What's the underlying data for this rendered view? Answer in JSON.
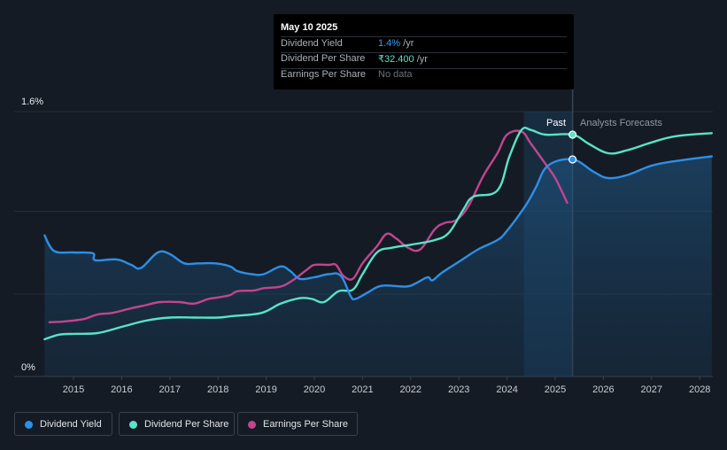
{
  "tooltip": {
    "date": "May 10 2025",
    "rows": [
      {
        "label": "Dividend Yield",
        "value": "1.4%",
        "unit": " /yr",
        "color": "#3b9ff0"
      },
      {
        "label": "Dividend Per Share",
        "value": "₹32.400",
        "unit": " /yr",
        "color": "#59e3c8"
      },
      {
        "label": "Earnings Per Share",
        "value": "No data",
        "unit": "",
        "color": "#6b727b"
      }
    ]
  },
  "labels": {
    "past": "Past",
    "forecast": "Analysts Forecasts"
  },
  "legend": [
    {
      "label": "Dividend Yield",
      "color": "#2e8fe6"
    },
    {
      "label": "Dividend Per Share",
      "color": "#59e3c8"
    },
    {
      "label": "Earnings Per Share",
      "color": "#c2458f"
    }
  ],
  "chart_data": {
    "type": "line",
    "title": "",
    "xlabel": "",
    "ylabel": "",
    "x_ticks": [
      "2015",
      "2016",
      "2017",
      "2018",
      "2019",
      "2020",
      "2021",
      "2022",
      "2023",
      "2024",
      "2025",
      "2026",
      "2027",
      "2028"
    ],
    "y_ticks": [
      "0%",
      "1.6%"
    ],
    "ylim": [
      0,
      1.6
    ],
    "xlim": [
      2014.4,
      2028.25
    ],
    "past_forecast_split": 2025.36,
    "highlight_band": [
      2024.35,
      2025.36
    ],
    "grid": true,
    "legend_position": "bottom-left",
    "series": [
      {
        "name": "Dividend Yield",
        "color": "#2e8fe6",
        "area": true,
        "points": [
          [
            2014.4,
            0.91
          ],
          [
            2014.6,
            0.81
          ],
          [
            2015.0,
            0.8
          ],
          [
            2015.4,
            0.795
          ],
          [
            2015.45,
            0.75
          ],
          [
            2015.9,
            0.755
          ],
          [
            2016.2,
            0.72
          ],
          [
            2016.4,
            0.7
          ],
          [
            2016.75,
            0.8
          ],
          [
            2017.0,
            0.79
          ],
          [
            2017.3,
            0.73
          ],
          [
            2017.6,
            0.73
          ],
          [
            2017.95,
            0.73
          ],
          [
            2018.25,
            0.71
          ],
          [
            2018.4,
            0.68
          ],
          [
            2018.7,
            0.66
          ],
          [
            2018.95,
            0.66
          ],
          [
            2019.3,
            0.71
          ],
          [
            2019.5,
            0.68
          ],
          [
            2019.7,
            0.63
          ],
          [
            2020.0,
            0.64
          ],
          [
            2020.3,
            0.66
          ],
          [
            2020.55,
            0.65
          ],
          [
            2020.75,
            0.52
          ],
          [
            2020.85,
            0.5
          ],
          [
            2021.1,
            0.54
          ],
          [
            2021.4,
            0.585
          ],
          [
            2021.9,
            0.58
          ],
          [
            2022.1,
            0.6
          ],
          [
            2022.35,
            0.64
          ],
          [
            2022.45,
            0.62
          ],
          [
            2022.65,
            0.67
          ],
          [
            2023.0,
            0.74
          ],
          [
            2023.4,
            0.82
          ],
          [
            2023.8,
            0.88
          ],
          [
            2024.0,
            0.94
          ],
          [
            2024.4,
            1.11
          ],
          [
            2024.6,
            1.22
          ],
          [
            2024.85,
            1.36
          ],
          [
            2025.36,
            1.4
          ],
          [
            2025.8,
            1.32
          ],
          [
            2026.1,
            1.28
          ],
          [
            2026.5,
            1.3
          ],
          [
            2027.0,
            1.36
          ],
          [
            2027.5,
            1.39
          ],
          [
            2028.25,
            1.42
          ]
        ]
      },
      {
        "name": "Dividend Per Share",
        "color": "#59e3c8",
        "area": false,
        "points": [
          [
            2014.4,
            0.24
          ],
          [
            2014.7,
            0.27
          ],
          [
            2015.0,
            0.275
          ],
          [
            2015.5,
            0.28
          ],
          [
            2016.0,
            0.32
          ],
          [
            2016.5,
            0.36
          ],
          [
            2017.0,
            0.38
          ],
          [
            2017.5,
            0.38
          ],
          [
            2018.0,
            0.38
          ],
          [
            2018.3,
            0.39
          ],
          [
            2018.9,
            0.41
          ],
          [
            2019.3,
            0.47
          ],
          [
            2019.7,
            0.505
          ],
          [
            2019.95,
            0.5
          ],
          [
            2020.2,
            0.48
          ],
          [
            2020.5,
            0.55
          ],
          [
            2020.8,
            0.56
          ],
          [
            2021.0,
            0.66
          ],
          [
            2021.3,
            0.8
          ],
          [
            2021.6,
            0.83
          ],
          [
            2022.0,
            0.85
          ],
          [
            2022.5,
            0.88
          ],
          [
            2022.8,
            0.93
          ],
          [
            2023.1,
            1.08
          ],
          [
            2023.3,
            1.16
          ],
          [
            2023.8,
            1.2
          ],
          [
            2024.05,
            1.42
          ],
          [
            2024.3,
            1.59
          ],
          [
            2024.5,
            1.59
          ],
          [
            2024.8,
            1.56
          ],
          [
            2025.36,
            1.56
          ],
          [
            2025.7,
            1.5
          ],
          [
            2026.1,
            1.44
          ],
          [
            2026.5,
            1.46
          ],
          [
            2027.0,
            1.51
          ],
          [
            2027.5,
            1.55
          ],
          [
            2028.25,
            1.57
          ]
        ]
      },
      {
        "name": "Earnings Per Share",
        "color": "#c2458f",
        "area": false,
        "points": [
          [
            2014.5,
            0.35
          ],
          [
            2014.8,
            0.355
          ],
          [
            2015.2,
            0.37
          ],
          [
            2015.5,
            0.4
          ],
          [
            2015.8,
            0.41
          ],
          [
            2016.2,
            0.44
          ],
          [
            2016.5,
            0.46
          ],
          [
            2016.8,
            0.48
          ],
          [
            2017.2,
            0.48
          ],
          [
            2017.5,
            0.47
          ],
          [
            2017.8,
            0.5
          ],
          [
            2018.0,
            0.51
          ],
          [
            2018.25,
            0.525
          ],
          [
            2018.4,
            0.55
          ],
          [
            2018.75,
            0.555
          ],
          [
            2018.95,
            0.57
          ],
          [
            2019.3,
            0.58
          ],
          [
            2019.55,
            0.62
          ],
          [
            2019.85,
            0.69
          ],
          [
            2020.0,
            0.72
          ],
          [
            2020.3,
            0.72
          ],
          [
            2020.45,
            0.72
          ],
          [
            2020.6,
            0.65
          ],
          [
            2020.8,
            0.63
          ],
          [
            2021.0,
            0.73
          ],
          [
            2021.3,
            0.84
          ],
          [
            2021.5,
            0.92
          ],
          [
            2021.7,
            0.89
          ],
          [
            2021.95,
            0.83
          ],
          [
            2022.2,
            0.82
          ],
          [
            2022.5,
            0.95
          ],
          [
            2022.7,
            0.99
          ],
          [
            2022.95,
            1.01
          ],
          [
            2023.2,
            1.1
          ],
          [
            2023.5,
            1.29
          ],
          [
            2023.8,
            1.44
          ],
          [
            2024.0,
            1.56
          ],
          [
            2024.3,
            1.58
          ],
          [
            2024.5,
            1.5
          ],
          [
            2024.8,
            1.37
          ],
          [
            2025.0,
            1.28
          ],
          [
            2025.25,
            1.12
          ]
        ]
      }
    ],
    "markers": [
      {
        "series": "Dividend Per Share",
        "x": 2025.36,
        "y": 1.56
      },
      {
        "series": "Dividend Yield",
        "x": 2025.36,
        "y": 1.4
      }
    ]
  }
}
